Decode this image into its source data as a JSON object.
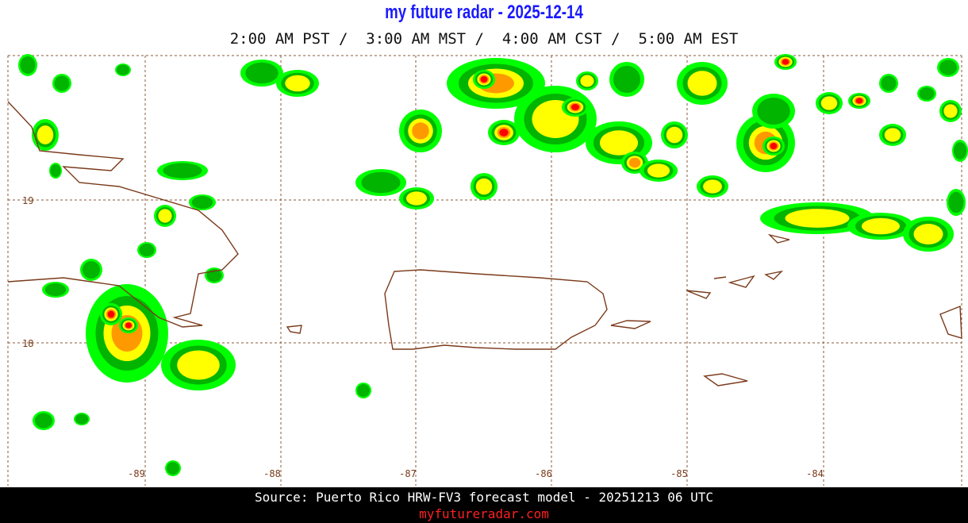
{
  "header": {
    "title": "my future radar - 2025-12-14",
    "subtitle": "2:00 AM PST /  3:00 AM MST /  4:00 AM CST /  5:00 AM EST"
  },
  "map": {
    "lon_labels": [
      "-89",
      "-88",
      "-87",
      "-86",
      "-85",
      "-84"
    ],
    "lat_labels": [
      "19",
      "18"
    ]
  },
  "footer": {
    "source": "Source: Puerto Rico HRW-FV3 forecast model - 20251213 06 UTC",
    "link": "myfutureradar.com"
  }
}
